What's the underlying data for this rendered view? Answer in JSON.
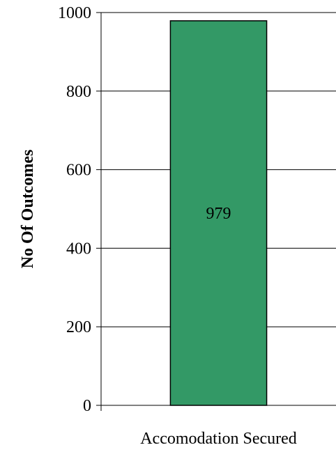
{
  "chart_data": {
    "type": "bar",
    "categories": [
      "Accomodation Secured"
    ],
    "values": [
      979
    ],
    "data_labels": [
      "979"
    ],
    "title": "",
    "xlabel": "",
    "ylabel": "No Of Outcomes",
    "ylim": [
      0,
      1000
    ],
    "yticks": [
      0,
      200,
      400,
      600,
      800,
      1000
    ],
    "ytick_labels": [
      "0",
      "200",
      "400",
      "600",
      "800",
      "1000"
    ],
    "grid": "horizontal",
    "legend": "none",
    "colors": {
      "bar_fill": "#339966",
      "bar_stroke": "#000000",
      "grid": "#000000",
      "axis": "#000000"
    }
  }
}
